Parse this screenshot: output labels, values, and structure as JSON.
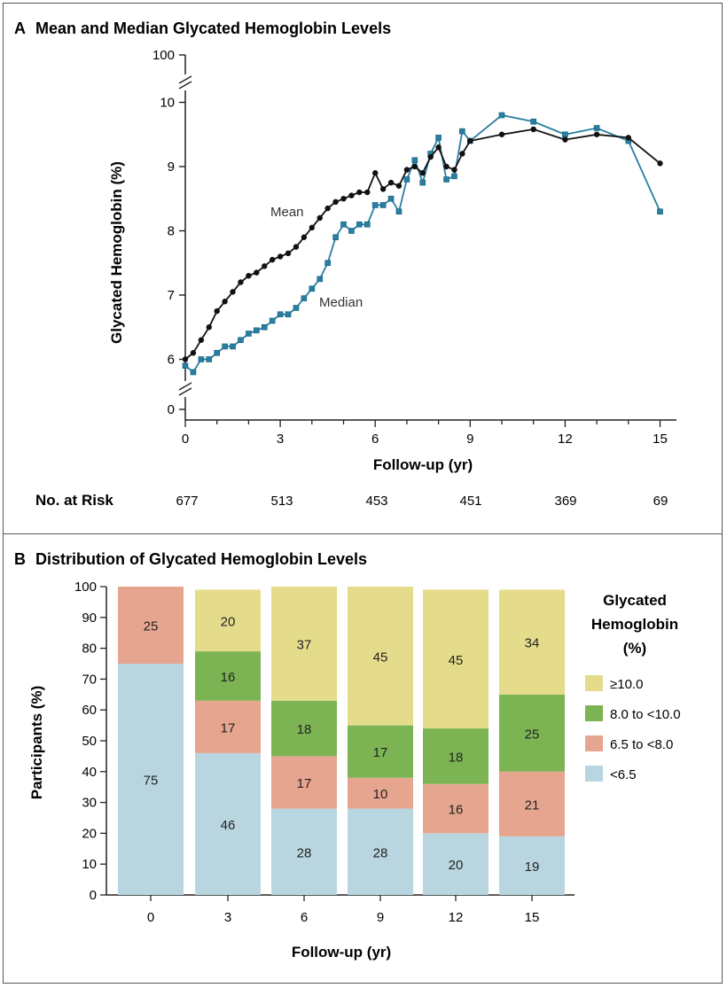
{
  "chart_data": [
    {
      "panel": "A",
      "panel_label": "A",
      "type": "line",
      "title": "Mean and Median Glycated Hemoglobin Levels",
      "xlabel": "Follow-up (yr)",
      "ylabel": "Glycated Hemoglobin (%)",
      "xlim": [
        0,
        15
      ],
      "x_ticks": [
        "0",
        "3",
        "6",
        "9",
        "12",
        "15"
      ],
      "y_ticks": [
        "0",
        "6",
        "7",
        "8",
        "9",
        "10",
        "100"
      ],
      "axis_break": "between 0 and 6, and between 10 and 100",
      "series": [
        {
          "name": "Mean",
          "label": "Mean",
          "color": "#111111",
          "x": [
            0,
            0.25,
            0.5,
            0.75,
            1,
            1.25,
            1.5,
            1.75,
            2,
            2.25,
            2.5,
            2.75,
            3,
            3.25,
            3.5,
            3.75,
            4,
            4.25,
            4.5,
            4.75,
            5,
            5.25,
            5.5,
            5.75,
            6,
            6.25,
            6.5,
            6.75,
            7,
            7.25,
            7.5,
            7.75,
            8,
            8.25,
            8.5,
            8.75,
            9,
            10,
            11,
            12,
            13,
            14,
            15
          ],
          "y": [
            6.0,
            6.1,
            6.3,
            6.5,
            6.75,
            6.9,
            7.05,
            7.2,
            7.3,
            7.35,
            7.45,
            7.55,
            7.6,
            7.65,
            7.75,
            7.9,
            8.05,
            8.2,
            8.35,
            8.45,
            8.5,
            8.55,
            8.6,
            8.6,
            8.9,
            8.65,
            8.75,
            8.7,
            8.95,
            9.0,
            8.9,
            9.15,
            9.3,
            9.0,
            8.95,
            9.2,
            9.4,
            9.5,
            9.58,
            9.42,
            9.5,
            9.45,
            9.05
          ]
        },
        {
          "name": "Median",
          "label": "Median",
          "color": "#2a7fa0",
          "x": [
            0,
            0.25,
            0.5,
            0.75,
            1,
            1.25,
            1.5,
            1.75,
            2,
            2.25,
            2.5,
            2.75,
            3,
            3.25,
            3.5,
            3.75,
            4,
            4.25,
            4.5,
            4.75,
            5,
            5.25,
            5.5,
            5.75,
            6,
            6.25,
            6.5,
            6.75,
            7,
            7.25,
            7.5,
            7.75,
            8,
            8.25,
            8.5,
            8.75,
            9,
            10,
            11,
            12,
            13,
            14,
            15
          ],
          "y": [
            5.9,
            5.8,
            6.0,
            6.0,
            6.1,
            6.2,
            6.2,
            6.3,
            6.4,
            6.45,
            6.5,
            6.6,
            6.7,
            6.7,
            6.8,
            6.95,
            7.1,
            7.25,
            7.5,
            7.9,
            8.1,
            8.0,
            8.1,
            8.1,
            8.4,
            8.4,
            8.5,
            8.3,
            8.8,
            9.1,
            8.75,
            9.2,
            9.45,
            8.8,
            8.85,
            9.55,
            9.4,
            9.8,
            9.7,
            9.5,
            9.6,
            9.4,
            8.3
          ]
        }
      ],
      "at_risk_label": "No. at Risk",
      "at_risk": [
        "677",
        "513",
        "453",
        "451",
        "369",
        "69"
      ]
    },
    {
      "panel": "B",
      "panel_label": "B",
      "type": "bar",
      "stacked": true,
      "title": "Distribution of Glycated Hemoglobin Levels",
      "xlabel": "Follow-up (yr)",
      "ylabel": "Participants (%)",
      "ylim": [
        0,
        100
      ],
      "y_ticks": [
        "0",
        "10",
        "20",
        "30",
        "40",
        "50",
        "60",
        "70",
        "80",
        "90",
        "100"
      ],
      "categories": [
        "0",
        "3",
        "6",
        "9",
        "12",
        "15"
      ],
      "legend_title": [
        "Glycated",
        "Hemoglobin",
        "(%)"
      ],
      "series": [
        {
          "name": "<6.5",
          "color": "#b9d6e0",
          "values": [
            75,
            46,
            28,
            28,
            20,
            19
          ],
          "labels": [
            "75",
            "46",
            "28",
            "28",
            "20",
            "19"
          ]
        },
        {
          "name": "6.5 to <8.0",
          "color": "#e6a58f",
          "values": [
            25,
            17,
            17,
            10,
            16,
            21
          ],
          "labels": [
            "25",
            "17",
            "17",
            "10",
            "16",
            "21"
          ]
        },
        {
          "name": "8.0 to <10.0",
          "color": "#7cb453",
          "values": [
            0,
            16,
            18,
            17,
            18,
            25
          ],
          "labels": [
            "",
            "16",
            "18",
            "17",
            "18",
            "25"
          ]
        },
        {
          "name": "≥10.0",
          "color": "#e5dc8b",
          "values": [
            0,
            20,
            37,
            45,
            45,
            34
          ],
          "labels": [
            "",
            "20",
            "37",
            "45",
            "45",
            "34"
          ]
        }
      ]
    }
  ]
}
